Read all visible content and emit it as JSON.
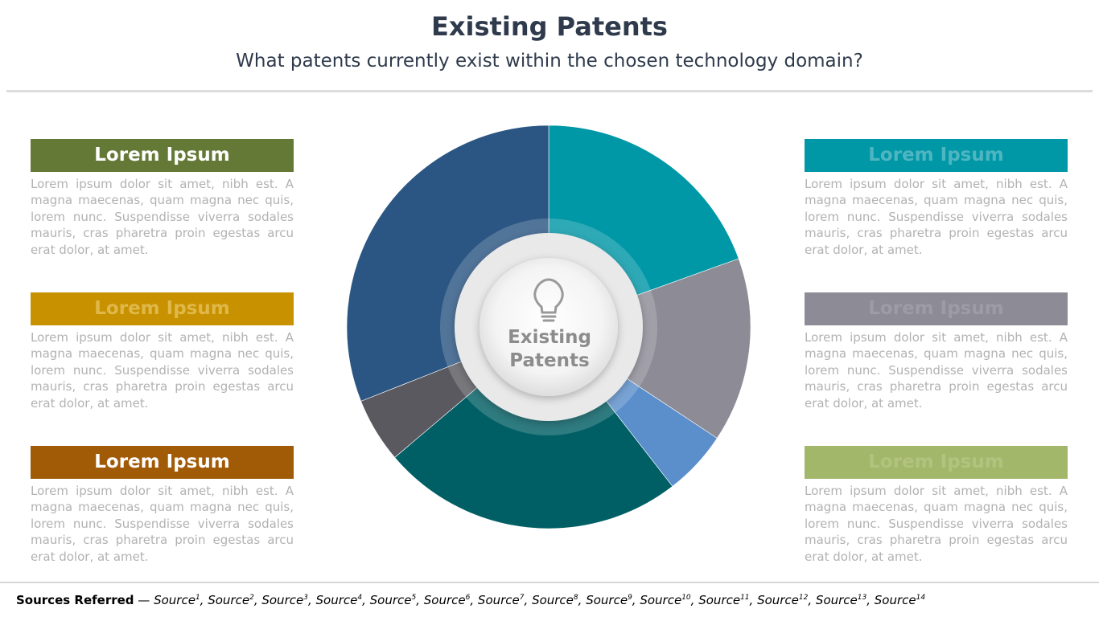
{
  "header": {
    "title": "Existing Patents",
    "subtitle": "What patents currently exist within the chosen technology domain?"
  },
  "blocks": [
    {
      "title": "Lorem Ipsum",
      "body": "Lorem ipsum dolor sit amet, nibh est. A magna maecenas, quam magna nec quis, lorem nunc. Suspendisse viverra sodales mauris, cras pharetra proin egestas arcu erat dolor, at amet.",
      "color": "#657937",
      "title_color": "#ffffff"
    },
    {
      "title": "Lorem Ipsum",
      "body": "Lorem ipsum dolor sit amet, nibh est. A magna maecenas, quam magna nec quis, lorem nunc. Suspendisse viverra sodales mauris, cras pharetra proin egestas arcu erat dolor, at amet.",
      "color": "#c79100",
      "title_color": "#e0b84a"
    },
    {
      "title": "Lorem Ipsum",
      "body": "Lorem ipsum dolor sit amet, nibh est. A magna maecenas, quam magna nec quis, lorem nunc. Suspendisse viverra sodales mauris, cras pharetra proin egestas arcu erat dolor, at amet.",
      "color": "#a15a06",
      "title_color": "#ffffff"
    },
    {
      "title": "Lorem Ipsum",
      "body": "Lorem ipsum dolor sit amet, nibh est. A magna maecenas, quam magna nec quis, lorem nunc. Suspendisse viverra sodales mauris, cras pharetra proin egestas arcu erat dolor, at amet.",
      "color": "#0097a7",
      "title_color": "#4fb6c1"
    },
    {
      "title": "Lorem Ipsum",
      "body": "Lorem ipsum dolor sit amet, nibh est. A magna maecenas, quam magna nec quis, lorem nunc. Suspendisse viverra sodales mauris, cras pharetra proin egestas arcu erat dolor, at amet.",
      "color": "#8d8c96",
      "title_color": "#9d9ca6"
    },
    {
      "title": "Lorem Ipsum",
      "body": "Lorem ipsum dolor sit amet, nibh est. A magna maecenas, quam magna nec quis, lorem nunc. Suspendisse viverra sodales mauris, cras pharetra proin egestas arcu erat dolor, at amet.",
      "color": "#a3b76a",
      "title_color": "#b2c37f"
    }
  ],
  "diagram": {
    "center_label_line1": "Existing",
    "center_label_line2": "Patents",
    "center_icon": "lightbulb-icon",
    "segments": [
      {
        "share": 0.195,
        "color": "#0097a7"
      },
      {
        "share": 0.148,
        "color": "#8d8c96"
      },
      {
        "share": 0.052,
        "color": "#5b8fcc"
      },
      {
        "share": 0.243,
        "color": "#005f65"
      },
      {
        "share": 0.052,
        "color": "#5a5960"
      },
      {
        "share": 0.31,
        "color": "#2b5683"
      }
    ]
  },
  "footer": {
    "label": "Sources Referred",
    "separator": " — ",
    "sources": [
      "Source1",
      "Source2",
      "Source3",
      "Source4",
      "Source5",
      "Source6",
      "Source7",
      "Source8",
      "Source9",
      "Source10",
      "Source11",
      "Source12",
      "Source13",
      "Source14"
    ]
  }
}
